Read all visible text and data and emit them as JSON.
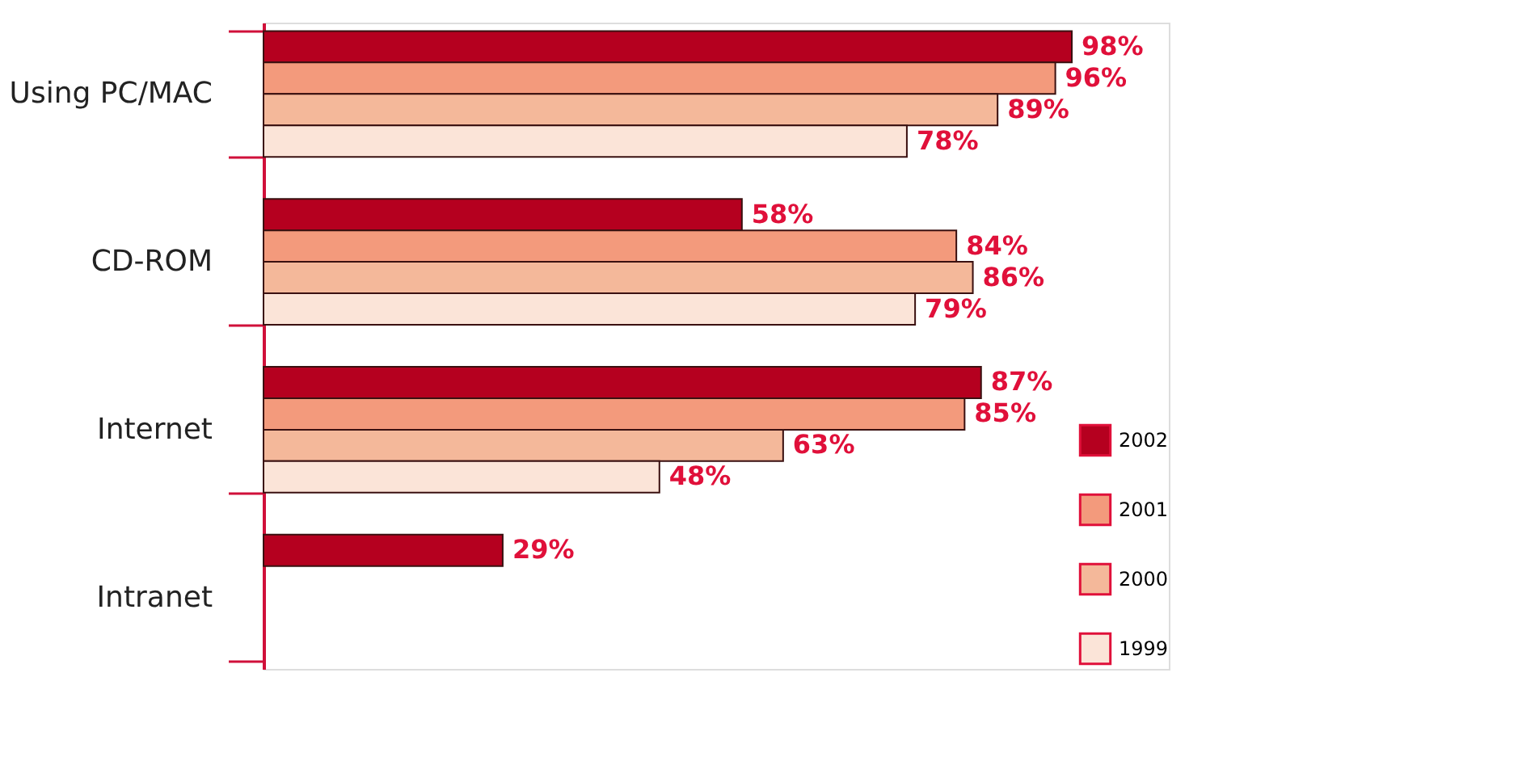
{
  "chart_data": {
    "type": "bar",
    "orientation": "horizontal",
    "categories": [
      "Using PC/MAC",
      "CD-ROM",
      "Internet",
      "Intranet"
    ],
    "series": [
      {
        "name": "2002",
        "color": "#b5001f",
        "values": [
          98,
          58,
          87,
          29
        ],
        "value_labels": [
          "98%",
          "58%",
          "87%",
          "29%"
        ]
      },
      {
        "name": "2001",
        "color": "#f39a7c",
        "values": [
          96,
          84,
          85,
          null
        ],
        "value_labels": [
          "96%",
          "84%",
          "85%",
          null
        ]
      },
      {
        "name": "2000",
        "color": "#f4b89a",
        "values": [
          89,
          86,
          63,
          null
        ],
        "value_labels": [
          "89%",
          "86%",
          "63%",
          null
        ]
      },
      {
        "name": "1999",
        "color": "#fbe4d8",
        "values": [
          78,
          79,
          48,
          null
        ],
        "value_labels": [
          "78%",
          "79%",
          "48%",
          null
        ]
      }
    ],
    "legend": "bottom right",
    "grid": false
  }
}
